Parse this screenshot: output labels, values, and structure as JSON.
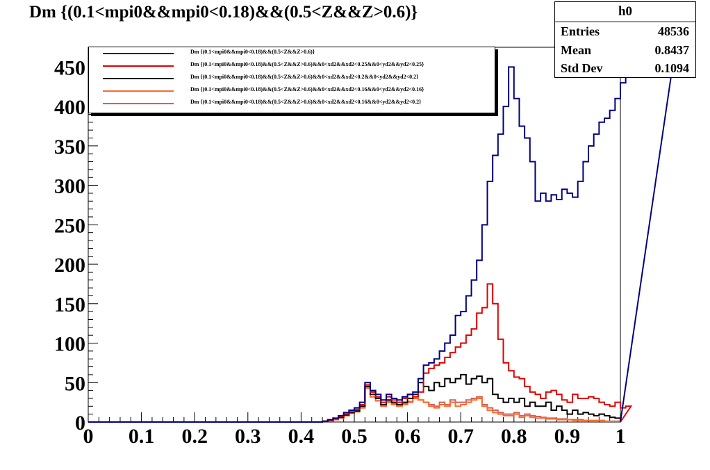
{
  "title": "Dm {(0.1<mpi0&&mpi0<0.18)&&(0.5<Z&&Z>0.6)}",
  "stats": {
    "name": "h0",
    "rows": [
      {
        "label": "Entries",
        "value": "48536"
      },
      {
        "label": "Mean",
        "value": "0.8437"
      },
      {
        "label": "Std Dev",
        "value": "0.1094"
      }
    ]
  },
  "chart_data": {
    "type": "histogram",
    "title": "Dm {(0.1<mpi0&&mpi0<0.18)&&(0.5<Z&&Z>0.6)}",
    "xlabel": "",
    "ylabel": "",
    "xlim": [
      0,
      1
    ],
    "ylim": [
      0,
      475
    ],
    "x_ticks": [
      "0",
      "0.1",
      "0.2",
      "0.3",
      "0.4",
      "0.5",
      "0.6",
      "0.7",
      "0.8",
      "0.9",
      "1"
    ],
    "y_ticks": [
      "0",
      "50",
      "100",
      "150",
      "200",
      "250",
      "300",
      "350",
      "400",
      "450"
    ],
    "x_tick_values": [
      0,
      0.1,
      0.2,
      0.3,
      0.4,
      0.5,
      0.6,
      0.7,
      0.8,
      0.9,
      1
    ],
    "y_tick_values": [
      0,
      50,
      100,
      150,
      200,
      250,
      300,
      350,
      400,
      450
    ],
    "bin_width": 0.01,
    "legend_position": "top-left",
    "grid": false,
    "series": [
      {
        "name": "Dm {(0.1<mpi0&&mpi0<0.18)&&(0.5<Z&&Z>0.6)}",
        "color": "#000080",
        "start": 0.44,
        "values": [
          1,
          3,
          5,
          8,
          12,
          15,
          18,
          25,
          50,
          40,
          35,
          28,
          35,
          30,
          28,
          32,
          35,
          38,
          55,
          72,
          75,
          80,
          90,
          100,
          110,
          135,
          140,
          160,
          180,
          205,
          250,
          305,
          338,
          365,
          400,
          450,
          410,
          375,
          360,
          330,
          280,
          290,
          280,
          288,
          282,
          295,
          290,
          285,
          305,
          330,
          350,
          365,
          380,
          385,
          395,
          410,
          430,
          450,
          465,
          480,
          470,
          445,
          450,
          440,
          455,
          460
        ]
      },
      {
        "name": "Dm {(0.1<mpi0&&mpi0<0.18)&&(0.5<Z&&Z>0.6)&&0<xd2&&xd2<0.25&&0<yd2&&yd2<0.25}",
        "color": "#e00000",
        "start": 0.44,
        "values": [
          1,
          2,
          4,
          7,
          10,
          13,
          16,
          22,
          47,
          38,
          32,
          25,
          32,
          28,
          25,
          30,
          35,
          32,
          38,
          62,
          68,
          72,
          75,
          82,
          88,
          95,
          100,
          110,
          118,
          138,
          145,
          175,
          150,
          105,
          75,
          65,
          57,
          55,
          45,
          38,
          35,
          30,
          38,
          40,
          35,
          28,
          25,
          35,
          30,
          30,
          32,
          30,
          25,
          22,
          20,
          25,
          18,
          20
        ]
      },
      {
        "name": "Dm {(0.1<mpi0&&mpi0<0.18)&&(0.5<Z&&Z>0.6)&&0<xd2&&xd2<0.2&&0<yd2&&yd2<0.2}",
        "color": "#000000",
        "start": 0.44,
        "values": [
          1,
          2,
          4,
          6,
          9,
          12,
          14,
          20,
          45,
          35,
          30,
          22,
          28,
          25,
          22,
          25,
          30,
          35,
          50,
          45,
          40,
          50,
          45,
          55,
          50,
          55,
          60,
          48,
          55,
          58,
          50,
          55,
          35,
          30,
          25,
          30,
          25,
          30,
          20,
          25,
          20,
          20,
          25,
          15,
          20,
          15,
          10,
          15,
          10,
          12,
          10,
          8,
          10,
          8,
          6,
          5
        ]
      },
      {
        "name": "Dm {(0.1<mpi0&&mpi0<0.18)&&(0.5<Z&&Z>0.6)&&0<xd2&&xd2<0.16&&0<yd2&&yd2<0.16}",
        "color": "#ff6a2a",
        "start": 0.44,
        "values": [
          1,
          2,
          3,
          5,
          8,
          11,
          13,
          18,
          43,
          32,
          27,
          20,
          25,
          22,
          20,
          22,
          25,
          30,
          28,
          25,
          20,
          18,
          22,
          20,
          25,
          20,
          22,
          25,
          28,
          30,
          20,
          15,
          12,
          10,
          8,
          8,
          10,
          6,
          8,
          6,
          5,
          5,
          4,
          4,
          3,
          3,
          3,
          2,
          2,
          2,
          2,
          2,
          2,
          1,
          1,
          1
        ]
      },
      {
        "name": "Dm {(0.1<mpi0&&mpi0<0.18)&&(0.5<Z&&Z>0.6)&&0<xd2&&xd2<0.16&&0<yd2&&yd2<0.2}",
        "color": "#d06060",
        "start": 0.44,
        "values": [
          1,
          2,
          3,
          5,
          8,
          11,
          13,
          18,
          43,
          32,
          27,
          20,
          26,
          23,
          20,
          23,
          26,
          30,
          28,
          25,
          22,
          20,
          25,
          22,
          28,
          25,
          25,
          28,
          30,
          32,
          22,
          18,
          15,
          12,
          10,
          10,
          12,
          8,
          10,
          8,
          7,
          6,
          5,
          5,
          4,
          4,
          3,
          3,
          3,
          2,
          2,
          2,
          2,
          1,
          1,
          1
        ]
      }
    ]
  }
}
